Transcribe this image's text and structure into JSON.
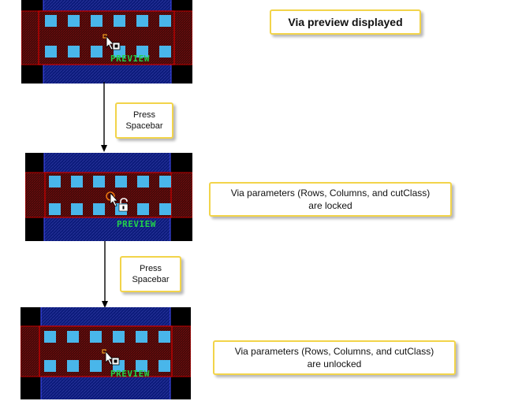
{
  "colors": {
    "panel_bg": "#000000",
    "metal_blue": "#0b1a7a",
    "metal_hatch": "#3a47b8",
    "red_layer": "#d10000",
    "red_hatch": "#6a0a0a",
    "via_cut": "#49b6ea",
    "preview_text": "#22d24a",
    "callout_border": "#f2d44a"
  },
  "callouts": {
    "preview_title": "Via preview displayed",
    "press_1_line1": "Press",
    "press_1_line2": "Spacebar",
    "press_2_line1": "Press",
    "press_2_line2": "Spacebar",
    "locked_line1": "Via parameters (Rows, Columns, and cutClass)",
    "locked_line2": "are locked",
    "unlocked_line1": "Via parameters (Rows, Columns, and cutClass)",
    "unlocked_line2": "are unlocked"
  },
  "panels": {
    "preview_label": "PREVIEW",
    "cursor_icon": "arrow-cursor-icon",
    "lock_icon": "padlock-icon"
  }
}
